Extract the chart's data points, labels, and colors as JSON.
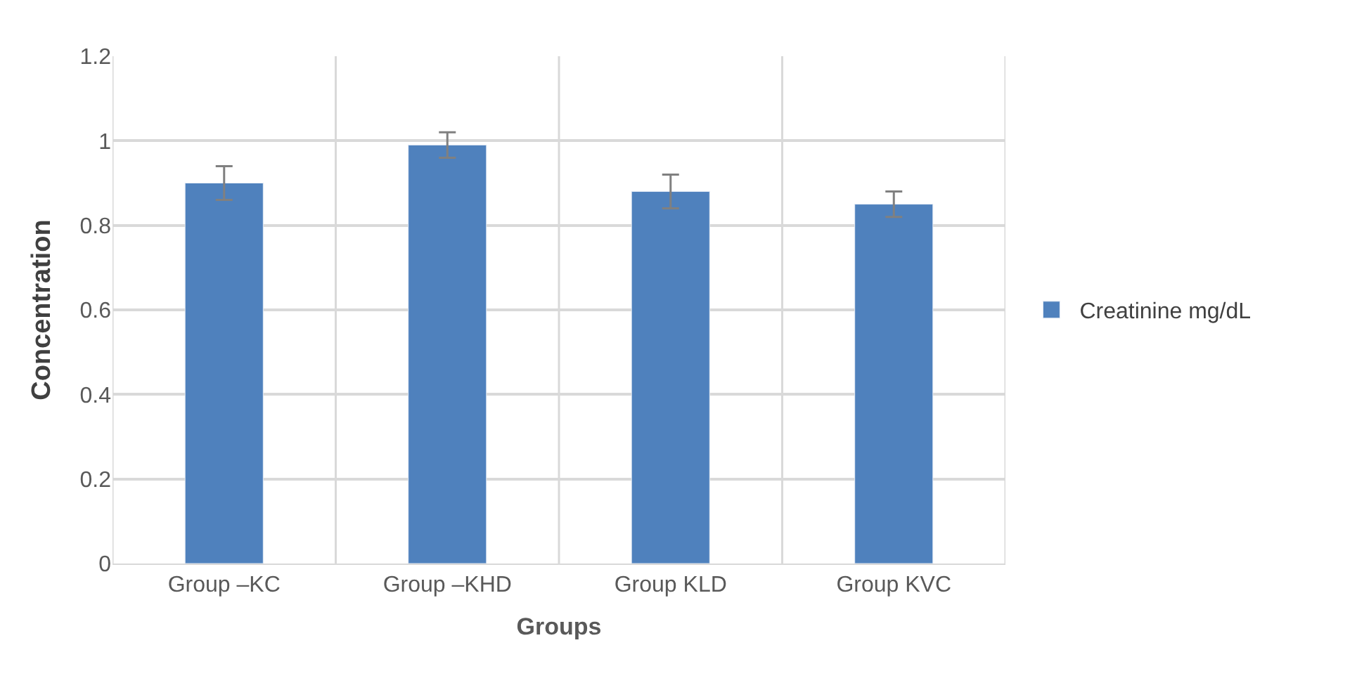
{
  "chart_data": {
    "type": "bar",
    "xlabel": "Groups",
    "ylabel": "Concentration",
    "categories": [
      "Group –KC",
      "Group –KHD",
      "Group KLD",
      "Group KVC"
    ],
    "series": [
      {
        "name": "Creatinine mg/dL",
        "color": "#4f81bd",
        "values": [
          0.9,
          0.99,
          0.88,
          0.85
        ],
        "errors": [
          0.04,
          0.03,
          0.04,
          0.03
        ]
      }
    ],
    "ylim": [
      0,
      1.2
    ],
    "yticks": [
      0,
      0.2,
      0.4,
      0.6,
      0.8,
      1,
      1.2
    ],
    "grid": true,
    "legend": "right"
  }
}
